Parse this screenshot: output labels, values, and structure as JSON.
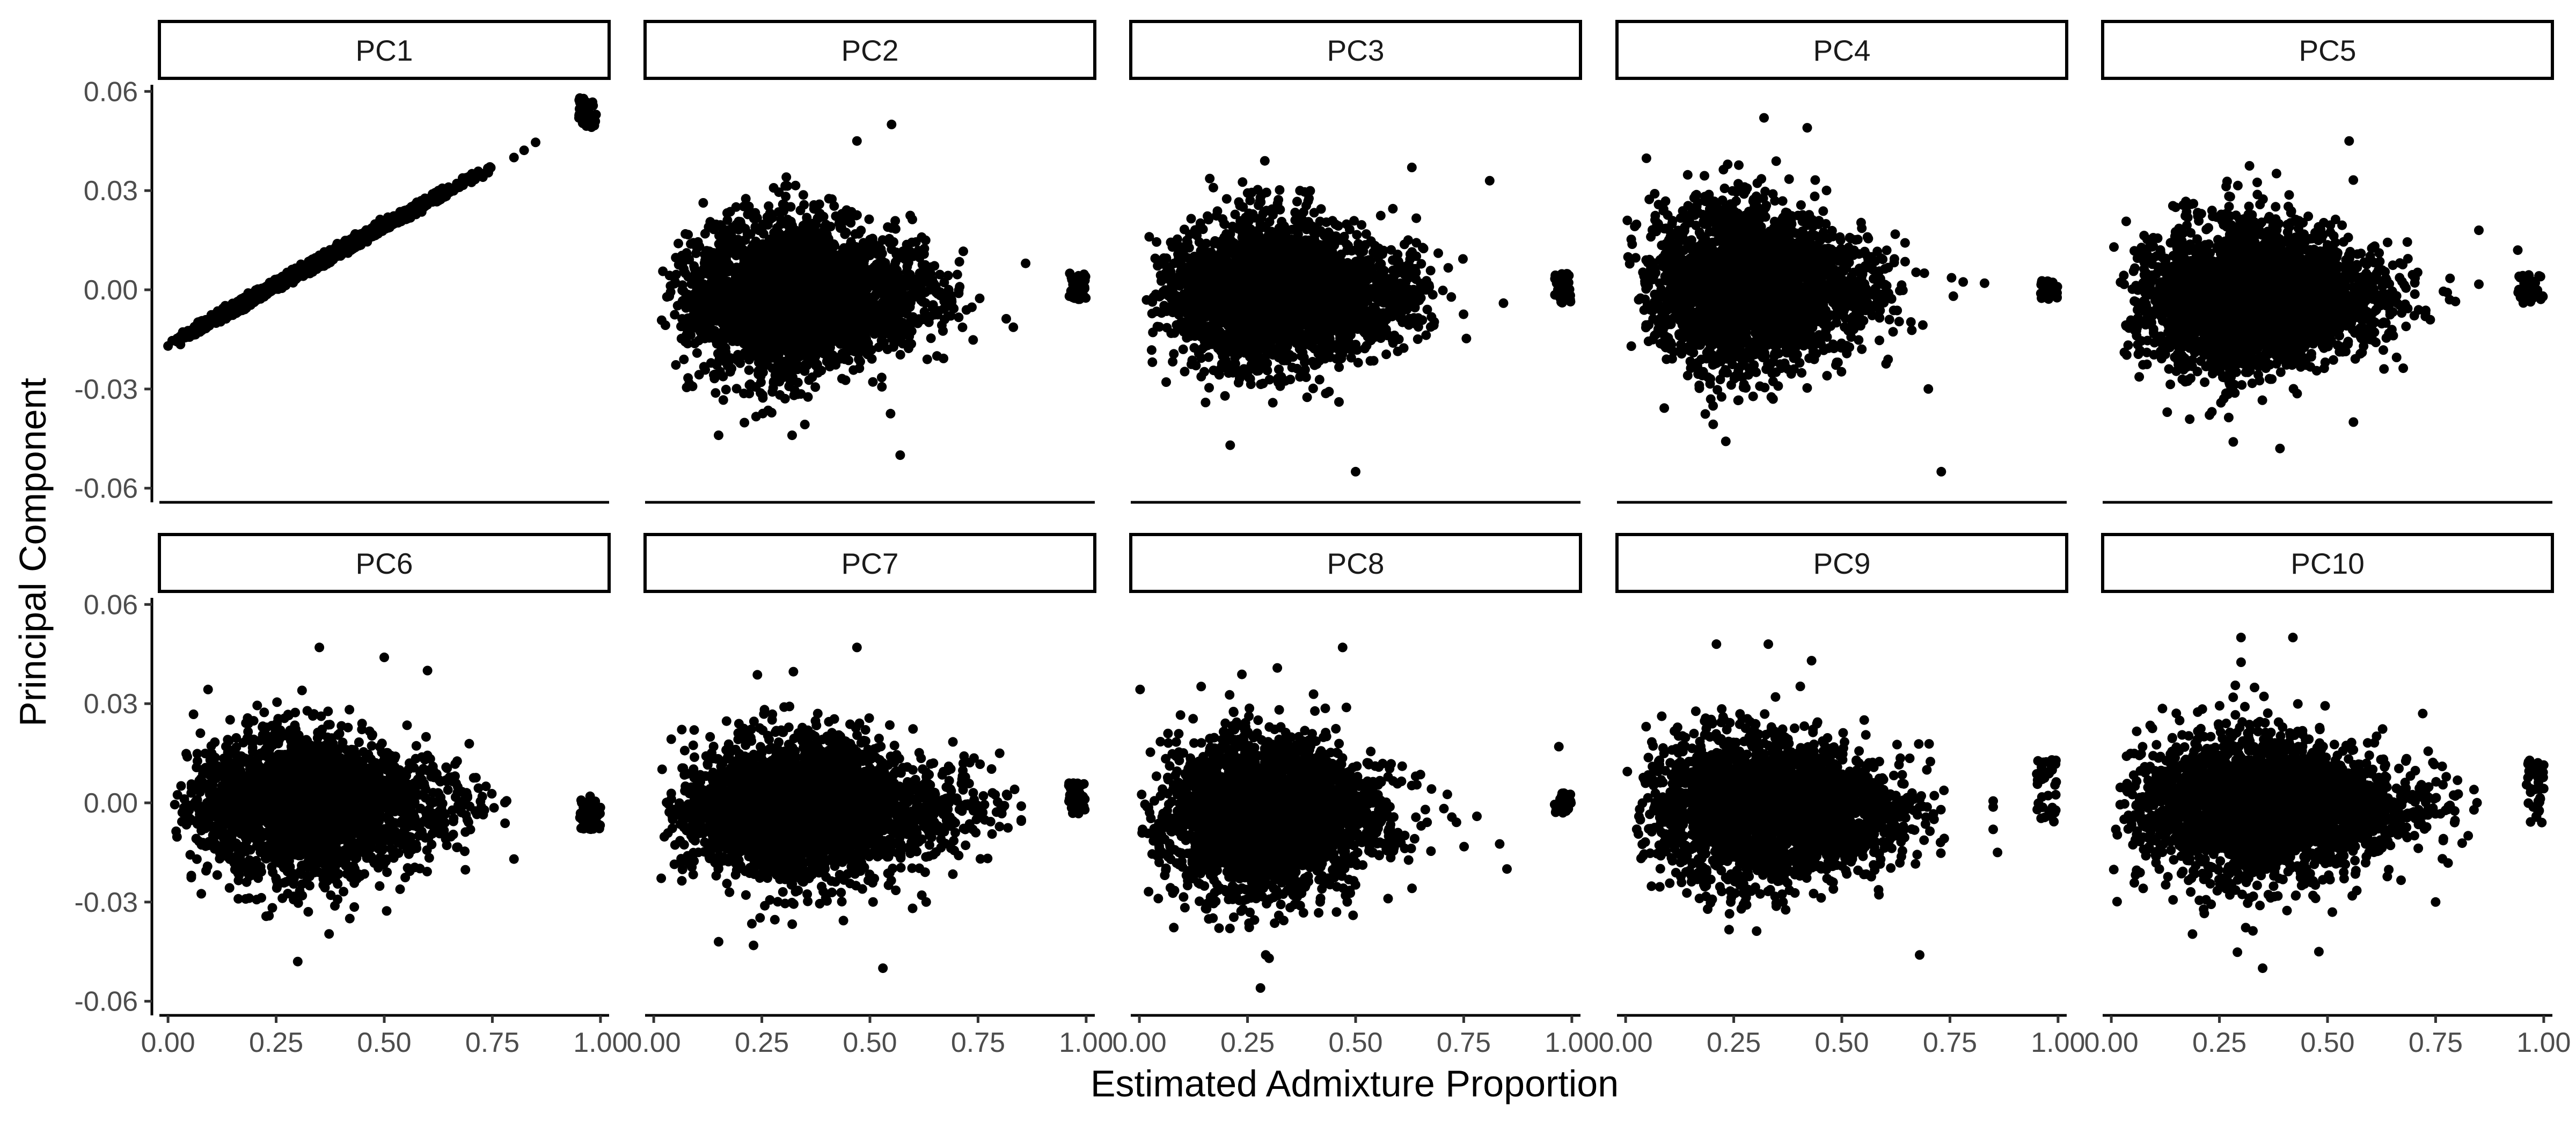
{
  "chart_data": {
    "type": "scatter",
    "layout": "facet grid, 2 rows x 5 columns, shared axes",
    "xlabel": "Estimated Admixture Proportion",
    "ylabel": "Principal Component",
    "xlim": [
      -0.02,
      1.02
    ],
    "ylim": [
      -0.062,
      0.062
    ],
    "x_ticks": [
      0.0,
      0.25,
      0.5,
      0.75,
      1.0
    ],
    "x_tick_labels": [
      "0.00",
      "0.25",
      "0.50",
      "0.75",
      "1.00"
    ],
    "y_ticks": [
      -0.06,
      -0.03,
      0.0,
      0.03,
      0.06
    ],
    "y_tick_labels": [
      "-0.06",
      "-0.03",
      "0.00",
      "0.03",
      "0.06"
    ],
    "grid": false,
    "legend": "none",
    "point_color": "#000000",
    "strip_fill": "#ffffff",
    "panels": [
      {
        "title": "PC1",
        "pattern": "linear",
        "slope": 0.0717,
        "intercept": -0.0165,
        "x_peak": 0.25,
        "main_x_range": [
          0.0,
          0.85
        ],
        "y_sd": 0.0008,
        "cluster_near_one": {
          "x": [
            0.95,
            0.99
          ],
          "y": [
            0.049,
            0.058
          ]
        },
        "points": [
          {
            "x": 0.0,
            "y": -0.017
          },
          {
            "x": 0.1,
            "y": -0.009
          },
          {
            "x": 0.2,
            "y": -0.002
          },
          {
            "x": 0.3,
            "y": 0.005
          },
          {
            "x": 0.4,
            "y": 0.012
          },
          {
            "x": 0.5,
            "y": 0.019
          },
          {
            "x": 0.6,
            "y": 0.026
          },
          {
            "x": 0.7,
            "y": 0.033
          },
          {
            "x": 0.8,
            "y": 0.04
          },
          {
            "x": 0.97,
            "y": 0.053
          }
        ]
      },
      {
        "title": "PC2",
        "pattern": "cloud",
        "x_peak": 0.25,
        "main_x_range": [
          0.0,
          0.85
        ],
        "y_center": -0.002,
        "y_sd": 0.013,
        "cluster_near_one": {
          "x": [
            0.96,
            1.0
          ],
          "y": [
            -0.003,
            0.005
          ]
        },
        "points": [
          {
            "x": 0.55,
            "y": 0.05
          },
          {
            "x": 0.47,
            "y": 0.045
          },
          {
            "x": 0.57,
            "y": -0.05
          },
          {
            "x": 0.86,
            "y": 0.008
          },
          {
            "x": 0.15,
            "y": -0.044
          },
          {
            "x": 0.32,
            "y": -0.044
          }
        ]
      },
      {
        "title": "PC3",
        "pattern": "cloud",
        "x_peak": 0.25,
        "main_x_range": [
          0.0,
          0.85
        ],
        "y_center": -0.002,
        "y_sd": 0.012,
        "cluster_near_one": {
          "x": [
            0.96,
            1.0
          ],
          "y": [
            -0.004,
            0.005
          ]
        },
        "points": [
          {
            "x": 0.5,
            "y": -0.055
          },
          {
            "x": 0.29,
            "y": 0.039
          },
          {
            "x": 0.81,
            "y": 0.033
          },
          {
            "x": 0.21,
            "y": -0.047
          },
          {
            "x": 0.63,
            "y": 0.037
          }
        ]
      },
      {
        "title": "PC4",
        "pattern": "cloud",
        "x_peak": 0.22,
        "main_x_range": [
          0.0,
          0.85
        ],
        "y_center": 0.001,
        "y_sd": 0.013,
        "cluster_near_one": {
          "x": [
            0.96,
            1.0
          ],
          "y": [
            -0.003,
            0.003
          ]
        },
        "points": [
          {
            "x": 0.73,
            "y": -0.055
          },
          {
            "x": 0.32,
            "y": 0.052
          },
          {
            "x": 0.42,
            "y": 0.049
          },
          {
            "x": 0.83,
            "y": 0.002
          },
          {
            "x": 0.7,
            "y": -0.03
          }
        ]
      },
      {
        "title": "PC5",
        "pattern": "cloud",
        "x_peak": 0.25,
        "main_x_range": [
          0.0,
          0.85
        ],
        "y_center": -0.002,
        "y_sd": 0.012,
        "cluster_near_one": {
          "x": [
            0.94,
            1.0
          ],
          "y": [
            -0.004,
            0.005
          ]
        },
        "points": [
          {
            "x": 0.55,
            "y": 0.045
          },
          {
            "x": 0.39,
            "y": -0.048
          },
          {
            "x": 0.85,
            "y": 0.018
          },
          {
            "x": 0.56,
            "y": -0.04
          },
          {
            "x": 0.94,
            "y": 0.012
          }
        ]
      },
      {
        "title": "PC6",
        "pattern": "cloud",
        "x_peak": 0.25,
        "main_x_range": [
          0.0,
          0.85
        ],
        "y_center": -0.001,
        "y_sd": 0.012,
        "cluster_near_one": {
          "x": [
            0.95,
            1.0
          ],
          "y": [
            -0.008,
            0.003
          ]
        },
        "points": [
          {
            "x": 0.35,
            "y": 0.047
          },
          {
            "x": 0.5,
            "y": 0.044
          },
          {
            "x": 0.6,
            "y": 0.04
          },
          {
            "x": 0.3,
            "y": -0.048
          },
          {
            "x": 0.8,
            "y": -0.017
          }
        ]
      },
      {
        "title": "PC7",
        "pattern": "cloud",
        "x_peak": 0.28,
        "main_x_range": [
          0.0,
          0.85
        ],
        "y_center": -0.002,
        "y_sd": 0.012,
        "cluster_near_one": {
          "x": [
            0.96,
            1.0
          ],
          "y": [
            -0.004,
            0.006
          ]
        },
        "points": [
          {
            "x": 0.47,
            "y": 0.047
          },
          {
            "x": 0.53,
            "y": -0.05
          },
          {
            "x": 0.8,
            "y": 0.015
          },
          {
            "x": 0.15,
            "y": -0.042
          },
          {
            "x": 0.63,
            "y": -0.03
          }
        ]
      },
      {
        "title": "PC8",
        "pattern": "cloud",
        "x_peak": 0.22,
        "main_x_range": [
          0.0,
          0.85
        ],
        "y_center": -0.003,
        "y_sd": 0.013,
        "cluster_near_one": {
          "x": [
            0.96,
            1.0
          ],
          "y": [
            -0.003,
            0.003
          ]
        },
        "points": [
          {
            "x": 0.28,
            "y": -0.056
          },
          {
            "x": 0.47,
            "y": 0.047
          },
          {
            "x": 0.97,
            "y": 0.017
          },
          {
            "x": 0.85,
            "y": -0.02
          },
          {
            "x": 0.3,
            "y": -0.047
          }
        ]
      },
      {
        "title": "PC9",
        "pattern": "cloud",
        "x_peak": 0.25,
        "main_x_range": [
          0.0,
          0.85
        ],
        "y_center": -0.002,
        "y_sd": 0.012,
        "cluster_near_one": {
          "x": [
            0.95,
            1.0
          ],
          "y": [
            -0.006,
            0.013
          ]
        },
        "points": [
          {
            "x": 0.21,
            "y": 0.048
          },
          {
            "x": 0.33,
            "y": 0.048
          },
          {
            "x": 0.43,
            "y": 0.043
          },
          {
            "x": 0.68,
            "y": -0.046
          },
          {
            "x": 0.86,
            "y": -0.015
          }
        ]
      },
      {
        "title": "PC10",
        "pattern": "cloud",
        "x_peak": 0.28,
        "main_x_range": [
          0.0,
          0.85
        ],
        "y_center": -0.001,
        "y_sd": 0.012,
        "cluster_near_one": {
          "x": [
            0.96,
            1.0
          ],
          "y": [
            -0.006,
            0.013
          ]
        },
        "points": [
          {
            "x": 0.3,
            "y": 0.05
          },
          {
            "x": 0.42,
            "y": 0.05
          },
          {
            "x": 0.35,
            "y": -0.05
          },
          {
            "x": 0.48,
            "y": -0.045
          },
          {
            "x": 0.75,
            "y": -0.03
          }
        ]
      }
    ]
  }
}
